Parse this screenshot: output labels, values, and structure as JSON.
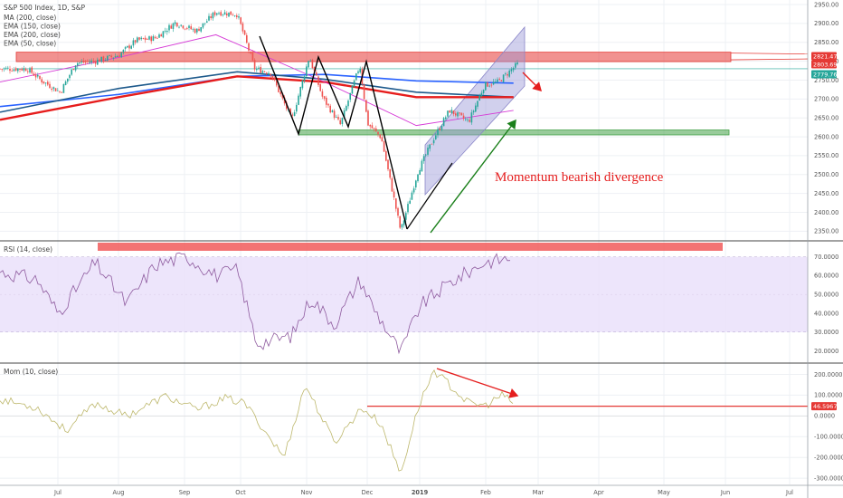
{
  "chart_data": [
    {
      "type": "line",
      "panel": "price",
      "title": "S&P 500 Index, 1D, S&P",
      "legend": [
        "MA (200, close)",
        "EMA (150, close)",
        "EMA (200, close)",
        "EMA (50, close)"
      ],
      "legend_placement": "top-left",
      "x_ticks": [
        "Jul",
        "Aug",
        "Sep",
        "Oct",
        "Nov",
        "Dec",
        "2019",
        "Feb",
        "Mar",
        "Apr",
        "May",
        "Jun",
        "Jul"
      ],
      "y_ticks": [
        2950,
        2900,
        2850,
        2800,
        2750,
        2700,
        2650,
        2600,
        2550,
        2500,
        2450,
        2400,
        2350
      ],
      "ylim": [
        2327,
        2962
      ],
      "grid": true,
      "price_tags": [
        {
          "value": 2821.47,
          "label": "2821.47",
          "color": "#e53935"
        },
        {
          "value": 2803.69,
          "label": "2803.69",
          "color": "#e53935"
        },
        {
          "value": 2779.76,
          "label": "2779.76",
          "color": "#26a69a"
        }
      ],
      "close_path": {
        "x": [
          "2018-06-15",
          "2018-06-22",
          "2018-07-02",
          "2018-07-10",
          "2018-07-20",
          "2018-08-01",
          "2018-08-10",
          "2018-08-20",
          "2018-08-30",
          "2018-09-10",
          "2018-09-20",
          "2018-10-01",
          "2018-10-10",
          "2018-10-18",
          "2018-10-29",
          "2018-11-07",
          "2018-11-14",
          "2018-11-23",
          "2018-12-03",
          "2018-12-07",
          "2018-12-14",
          "2018-12-24",
          "2019-01-02",
          "2019-01-10",
          "2019-01-18",
          "2019-01-28",
          "2019-02-05",
          "2019-02-12",
          "2019-02-22"
        ],
        "y": [
          2780,
          2750,
          2718,
          2795,
          2800,
          2816,
          2855,
          2862,
          2902,
          2880,
          2930,
          2924,
          2780,
          2770,
          2645,
          2812,
          2702,
          2632,
          2790,
          2635,
          2598,
          2351,
          2510,
          2596,
          2670,
          2640,
          2737,
          2745,
          2792
        ]
      },
      "series": [
        {
          "name": "MA (200, close)",
          "color": "#2962ff",
          "x": [
            "2018-06-01",
            "2018-08-01",
            "2018-10-01",
            "2018-11-15",
            "2019-01-01",
            "2019-02-20"
          ],
          "y": [
            2680,
            2712,
            2760,
            2765,
            2748,
            2742
          ]
        },
        {
          "name": "EMA (150, close)",
          "color": "#1e5a8c",
          "x": [
            "2018-06-01",
            "2018-08-01",
            "2018-10-01",
            "2018-11-15",
            "2019-01-01",
            "2019-02-20"
          ],
          "y": [
            2665,
            2728,
            2772,
            2752,
            2718,
            2705
          ]
        },
        {
          "name": "EMA (200, close)",
          "color": "#e61c1c",
          "x": [
            "2018-06-01",
            "2018-08-01",
            "2018-10-01",
            "2018-11-15",
            "2019-01-01",
            "2019-02-20"
          ],
          "y": [
            2645,
            2705,
            2760,
            2745,
            2705,
            2705
          ]
        },
        {
          "name": "EMA (50, close)",
          "color": "#d63ad6",
          "x": [
            "2018-06-01",
            "2018-08-01",
            "2018-09-20",
            "2018-11-15",
            "2019-01-01",
            "2019-02-20"
          ],
          "y": [
            2745,
            2810,
            2870,
            2745,
            2630,
            2670
          ]
        }
      ],
      "annotations": [
        {
          "type": "resistance_zone",
          "from": 2803.69,
          "to": 2821.47,
          "color": "#e53935"
        },
        {
          "type": "support_zone",
          "from": 2605,
          "to": 2618,
          "color": "#43a047"
        },
        {
          "type": "text",
          "text": "Momentum bearish divergence",
          "color": "#e51e1e"
        }
      ]
    },
    {
      "type": "line",
      "panel": "rsi",
      "title": "RSI (14, close)",
      "y_ticks": [
        70.0,
        60.0,
        50.0,
        40.0,
        30.0,
        20.0
      ],
      "y_tick_labels": [
        "70.0000",
        "60.0000",
        "50.0000",
        "40.0000",
        "30.0000",
        "20.0000"
      ],
      "ylim": [
        14,
        78
      ],
      "band": [
        30,
        70
      ],
      "color": "#8e5a9e",
      "x": [
        "2018-06-01",
        "2018-06-20",
        "2018-07-01",
        "2018-07-20",
        "2018-08-05",
        "2018-08-20",
        "2018-09-05",
        "2018-09-20",
        "2018-10-01",
        "2018-10-11",
        "2018-10-29",
        "2018-11-08",
        "2018-11-20",
        "2018-12-03",
        "2018-12-10",
        "2018-12-24",
        "2019-01-03",
        "2019-01-18",
        "2019-02-05",
        "2019-02-22"
      ],
      "y": [
        62,
        58,
        40,
        67,
        45,
        66,
        70,
        60,
        63,
        24,
        28,
        48,
        34,
        58,
        43,
        19,
        44,
        56,
        67,
        70
      ]
    },
    {
      "type": "line",
      "panel": "momentum",
      "title": "Mom (10, close)",
      "y_ticks": [
        200,
        100,
        0,
        -100,
        -200,
        -300
      ],
      "y_tick_labels": [
        "200.0000",
        "100.0000",
        "0.0000",
        "-100.0000",
        "-200.0000",
        "-300.0000"
      ],
      "ylim": [
        -330,
        250
      ],
      "color": "#bdb76b",
      "price_tag": {
        "value": 46.5967,
        "label": "46.5967",
        "color": "#e53935"
      },
      "x": [
        "2018-06-01",
        "2018-06-20",
        "2018-07-05",
        "2018-07-20",
        "2018-08-05",
        "2018-08-25",
        "2018-09-10",
        "2018-09-25",
        "2018-10-05",
        "2018-10-25",
        "2018-11-05",
        "2018-11-20",
        "2018-12-04",
        "2018-12-14",
        "2018-12-24",
        "2019-01-02",
        "2019-01-10",
        "2019-01-18",
        "2019-01-28",
        "2019-02-06",
        "2019-02-14",
        "2019-02-22"
      ],
      "y": [
        80,
        40,
        -70,
        60,
        0,
        95,
        30,
        85,
        60,
        -200,
        150,
        -130,
        40,
        -40,
        -280,
        40,
        220,
        150,
        60,
        50,
        100,
        50
      ]
    }
  ]
}
